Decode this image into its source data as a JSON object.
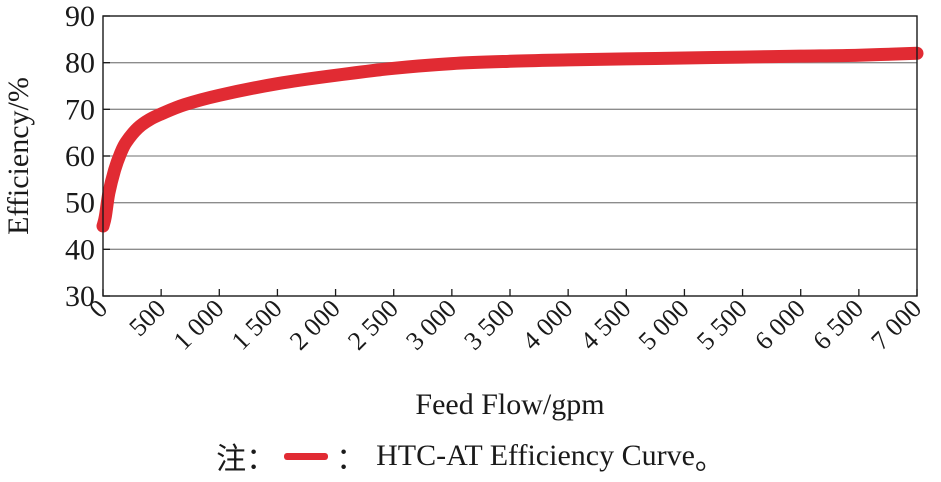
{
  "chart_data": {
    "type": "line",
    "xlabel": "Feed Flow/gpm",
    "ylabel": "Efficiency/%",
    "xlim": [
      0,
      7000
    ],
    "ylim": [
      30,
      90
    ],
    "x_ticks": [
      0,
      500,
      1000,
      1500,
      2000,
      2500,
      3000,
      3500,
      4000,
      4500,
      5000,
      5500,
      6000,
      6500,
      7000
    ],
    "x_tick_labels": [
      "0",
      "500",
      "1 000",
      "1 500",
      "2 000",
      "2 500",
      "3 000",
      "3 500",
      "4 000",
      "4 500",
      "5 000",
      "5 500",
      "6 000",
      "6 500",
      "7 000"
    ],
    "y_ticks": [
      30,
      40,
      50,
      60,
      70,
      80,
      90
    ],
    "y_tick_labels": [
      "30",
      "40",
      "50",
      "60",
      "70",
      "80",
      "90"
    ],
    "grid": "horizontal",
    "series": [
      {
        "name": "HTC-AT Efficiency Curve",
        "color": "#e12b33",
        "x": [
          0,
          20,
          50,
          100,
          150,
          200,
          300,
          400,
          500,
          700,
          1000,
          1500,
          2000,
          2500,
          3000,
          3500,
          4000,
          4500,
          5000,
          5500,
          6000,
          6500,
          7000
        ],
        "y": [
          45,
          47,
          52,
          57,
          60.5,
          63,
          66,
          67.8,
          69,
          71,
          73,
          75.5,
          77.3,
          78.8,
          79.8,
          80.3,
          80.6,
          80.8,
          81,
          81.2,
          81.4,
          81.6,
          82
        ]
      }
    ]
  },
  "note": {
    "prefix": "注：",
    "sep": "：",
    "text": "HTC-AT Efficiency Curve",
    "suffix": "。"
  }
}
